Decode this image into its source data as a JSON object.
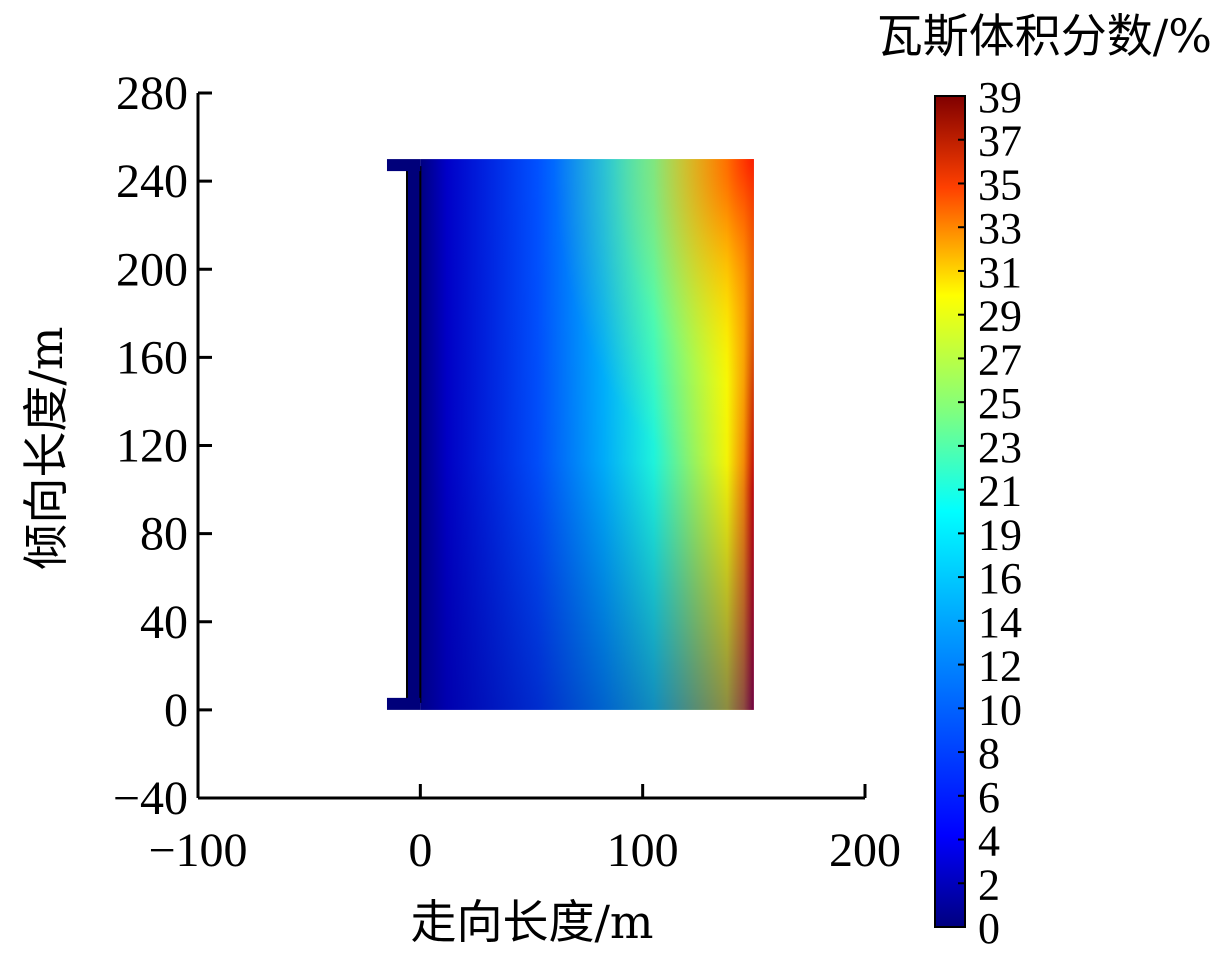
{
  "chart_data": {
    "type": "heatmap",
    "title": "",
    "xlabel": "走向长度/m",
    "ylabel": "倾向长度/m",
    "xlim": [
      -100,
      200
    ],
    "ylim": [
      -40,
      280
    ],
    "x_ticks": [
      "−100",
      "0",
      "100",
      "200"
    ],
    "x_tick_values": [
      -100,
      0,
      100,
      200
    ],
    "y_ticks": [
      "−40",
      "0",
      "40",
      "80",
      "120",
      "160",
      "200",
      "240",
      "280"
    ],
    "y_tick_values": [
      -40,
      0,
      40,
      80,
      120,
      160,
      200,
      240,
      280
    ],
    "field_extent": {
      "x": [
        -15,
        150
      ],
      "y": [
        0,
        250
      ]
    },
    "colorbar": {
      "title": "瓦斯体积分数/%",
      "range": [
        0,
        39
      ],
      "tick_labels": [
        "39",
        "37",
        "35",
        "33",
        "31",
        "29",
        "27",
        "25",
        "23",
        "21",
        "19",
        "16",
        "14",
        "12",
        "10",
        "8",
        "6",
        "4",
        "2",
        "0"
      ],
      "colormap": "jet"
    },
    "description_values": {
      "min_percent": 0,
      "max_percent": 39,
      "note_high_region": "right (x≈150) and top-right corner"
    }
  }
}
